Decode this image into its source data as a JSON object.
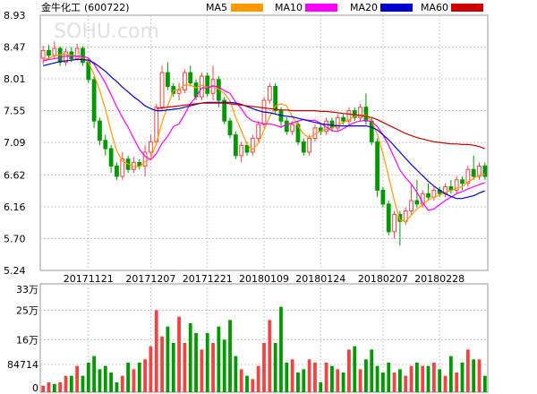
{
  "header": {
    "title": "金牛化工",
    "code": "(600722)",
    "legend": [
      {
        "label": "MA5",
        "color": "#ff9900"
      },
      {
        "label": "MA10",
        "color": "#ff00ff"
      },
      {
        "label": "MA20",
        "color": "#0000cc"
      },
      {
        "label": "MA60",
        "color": "#cc0000"
      }
    ]
  },
  "watermark": "SOHU.com",
  "colors": {
    "up": "#ee4444",
    "down": "#009900",
    "grid": "#c8c8c8"
  },
  "chart_data": [
    {
      "type": "candlestick",
      "title": "",
      "ylim": [
        5.24,
        8.93
      ],
      "yticks": [
        "8.93",
        "8.47",
        "8.01",
        "7.55",
        "7.09",
        "6.62",
        "6.16",
        "5.70",
        "5.24"
      ],
      "xlabels": [
        "20171121",
        "20171207",
        "20171221",
        "20180109",
        "20180124",
        "20180207",
        "20180228"
      ],
      "candles": [
        [
          8.31,
          8.42,
          8.22,
          8.49
        ],
        [
          8.42,
          8.35,
          8.3,
          8.5
        ],
        [
          8.35,
          8.45,
          8.3,
          8.55
        ],
        [
          8.45,
          8.25,
          8.2,
          8.48
        ],
        [
          8.25,
          8.4,
          8.2,
          8.45
        ],
        [
          8.4,
          8.3,
          8.25,
          8.47
        ],
        [
          8.3,
          8.45,
          8.28,
          8.52
        ],
        [
          8.45,
          8.25,
          8.2,
          8.48
        ],
        [
          8.25,
          8.0,
          7.95,
          8.3
        ],
        [
          8.0,
          7.4,
          7.3,
          8.05
        ],
        [
          7.4,
          7.12,
          7.05,
          7.45
        ],
        [
          7.12,
          7.0,
          6.9,
          7.2
        ],
        [
          7.0,
          6.75,
          6.65,
          7.05
        ],
        [
          6.75,
          6.6,
          6.55,
          6.8
        ],
        [
          6.6,
          6.85,
          6.55,
          6.95
        ],
        [
          6.85,
          6.7,
          6.65,
          6.9
        ],
        [
          6.7,
          6.8,
          6.65,
          6.88
        ],
        [
          6.8,
          6.75,
          6.7,
          6.85
        ],
        [
          6.75,
          6.95,
          6.6,
          7.05
        ],
        [
          6.95,
          7.1,
          6.9,
          7.2
        ],
        [
          7.1,
          7.6,
          7.05,
          7.65
        ],
        [
          7.6,
          8.1,
          7.55,
          8.2
        ],
        [
          8.1,
          7.9,
          7.85,
          8.25
        ],
        [
          7.9,
          7.8,
          7.75,
          7.95
        ],
        [
          7.8,
          7.85,
          7.7,
          7.95
        ],
        [
          7.85,
          8.1,
          7.8,
          8.15
        ],
        [
          8.1,
          7.95,
          7.9,
          8.2
        ],
        [
          7.95,
          7.75,
          7.7,
          8.0
        ],
        [
          7.75,
          8.05,
          7.7,
          8.1
        ],
        [
          8.05,
          7.8,
          7.75,
          8.1
        ],
        [
          7.8,
          8.0,
          7.7,
          8.2
        ],
        [
          8.0,
          7.7,
          7.6,
          8.05
        ],
        [
          7.7,
          7.4,
          7.35,
          7.75
        ],
        [
          7.4,
          7.2,
          7.15,
          7.45
        ],
        [
          7.2,
          6.9,
          6.85,
          7.25
        ],
        [
          6.9,
          7.05,
          6.8,
          7.1
        ],
        [
          7.05,
          6.95,
          6.9,
          7.1
        ],
        [
          6.95,
          7.15,
          6.9,
          7.2
        ],
        [
          7.15,
          7.35,
          7.1,
          7.4
        ],
        [
          7.35,
          7.7,
          7.3,
          7.75
        ],
        [
          7.7,
          7.9,
          7.65,
          7.95
        ],
        [
          7.9,
          7.55,
          7.5,
          7.95
        ],
        [
          7.55,
          7.4,
          7.3,
          7.6
        ],
        [
          7.4,
          7.25,
          7.2,
          7.45
        ],
        [
          7.25,
          7.35,
          7.2,
          7.4
        ],
        [
          7.35,
          7.1,
          7.05,
          7.4
        ],
        [
          7.1,
          6.95,
          6.9,
          7.15
        ],
        [
          6.95,
          7.15,
          6.9,
          7.2
        ],
        [
          7.15,
          7.3,
          7.1,
          7.35
        ],
        [
          7.3,
          7.25,
          7.2,
          7.35
        ],
        [
          7.25,
          7.4,
          7.2,
          7.45
        ],
        [
          7.4,
          7.3,
          7.25,
          7.45
        ],
        [
          7.3,
          7.45,
          7.25,
          7.5
        ],
        [
          7.45,
          7.4,
          7.35,
          7.5
        ],
        [
          7.4,
          7.55,
          7.35,
          7.6
        ],
        [
          7.55,
          7.45,
          7.4,
          7.6
        ],
        [
          7.45,
          7.6,
          7.4,
          7.65
        ],
        [
          7.6,
          7.4,
          7.35,
          7.8
        ],
        [
          7.4,
          7.1,
          7.05,
          7.45
        ],
        [
          7.1,
          6.4,
          6.3,
          7.15
        ],
        [
          6.4,
          6.2,
          6.15,
          6.45
        ],
        [
          6.2,
          5.8,
          5.75,
          6.25
        ],
        [
          5.8,
          6.05,
          5.7,
          6.1
        ],
        [
          6.05,
          5.95,
          5.6,
          6.1
        ],
        [
          5.95,
          6.1,
          5.9,
          6.15
        ],
        [
          6.1,
          6.25,
          6.05,
          6.5
        ],
        [
          6.25,
          6.2,
          6.15,
          6.55
        ],
        [
          6.2,
          6.35,
          6.15,
          6.4
        ],
        [
          6.35,
          6.3,
          6.25,
          6.5
        ],
        [
          6.3,
          6.4,
          6.25,
          6.45
        ],
        [
          6.4,
          6.35,
          6.3,
          6.45
        ],
        [
          6.35,
          6.45,
          6.3,
          6.5
        ],
        [
          6.45,
          6.4,
          6.35,
          6.55
        ],
        [
          6.4,
          6.55,
          6.35,
          6.6
        ],
        [
          6.55,
          6.5,
          6.4,
          6.6
        ],
        [
          6.5,
          6.7,
          6.45,
          6.75
        ],
        [
          6.7,
          6.6,
          6.55,
          6.9
        ],
        [
          6.6,
          6.75,
          6.55,
          6.8
        ],
        [
          6.75,
          6.6,
          6.55,
          6.8
        ]
      ],
      "series": [
        {
          "name": "MA5",
          "color": "#ff9900",
          "values": [
            8.28,
            8.31,
            8.34,
            8.36,
            8.37,
            8.35,
            8.33,
            8.31,
            8.25,
            8.07,
            7.84,
            7.57,
            7.25,
            6.97,
            6.82,
            6.78,
            6.74,
            6.74,
            6.81,
            6.86,
            7.08,
            7.38,
            7.62,
            7.84,
            7.86,
            7.92,
            7.92,
            7.88,
            7.92,
            7.89,
            7.9,
            7.86,
            7.8,
            7.69,
            7.45,
            7.26,
            7.06,
            6.99,
            7.08,
            7.27,
            7.46,
            7.62,
            7.65,
            7.62,
            7.47,
            7.33,
            7.21,
            7.16,
            7.21,
            7.26,
            7.28,
            7.3,
            7.34,
            7.38,
            7.42,
            7.47,
            7.49,
            7.48,
            7.4,
            7.21,
            6.93,
            6.6,
            6.25,
            5.97,
            5.95,
            6.04,
            6.13,
            6.19,
            6.26,
            6.3,
            6.33,
            6.37,
            6.4,
            6.43,
            6.45,
            6.52,
            6.57,
            6.62,
            6.63
          ]
        },
        {
          "name": "MA10",
          "color": "#ff00ff",
          "values": [
            8.27,
            8.29,
            8.3,
            8.32,
            8.34,
            8.34,
            8.34,
            8.34,
            8.31,
            8.22,
            8.09,
            7.95,
            7.78,
            7.61,
            7.45,
            7.31,
            7.15,
            6.99,
            6.89,
            6.84,
            6.93,
            7.08,
            7.18,
            7.32,
            7.36,
            7.5,
            7.65,
            7.75,
            7.88,
            7.88,
            7.91,
            7.89,
            7.84,
            7.8,
            7.67,
            7.58,
            7.46,
            7.4,
            7.38,
            7.36,
            7.36,
            7.34,
            7.31,
            7.35,
            7.37,
            7.4,
            7.42,
            7.41,
            7.41,
            7.37,
            7.31,
            7.26,
            7.25,
            7.29,
            7.34,
            7.38,
            7.4,
            7.41,
            7.39,
            7.32,
            7.2,
            7.05,
            6.87,
            6.69,
            6.58,
            6.49,
            6.37,
            6.22,
            6.11,
            6.13,
            6.19,
            6.25,
            6.3,
            6.35,
            6.38,
            6.42,
            6.45,
            6.48,
            6.51
          ]
        },
        {
          "name": "MA20",
          "color": "#0000cc",
          "values": [
            8.2,
            8.22,
            8.24,
            8.26,
            8.27,
            8.28,
            8.29,
            8.29,
            8.28,
            8.24,
            8.18,
            8.12,
            8.04,
            7.97,
            7.89,
            7.82,
            7.75,
            7.69,
            7.62,
            7.58,
            7.55,
            7.55,
            7.56,
            7.57,
            7.58,
            7.6,
            7.62,
            7.64,
            7.66,
            7.67,
            7.67,
            7.67,
            7.67,
            7.67,
            7.66,
            7.64,
            7.61,
            7.58,
            7.55,
            7.53,
            7.52,
            7.5,
            7.48,
            7.47,
            7.46,
            7.44,
            7.42,
            7.4,
            7.38,
            7.36,
            7.35,
            7.34,
            7.33,
            7.33,
            7.33,
            7.33,
            7.33,
            7.33,
            7.31,
            7.27,
            7.2,
            7.13,
            7.04,
            6.95,
            6.86,
            6.77,
            6.69,
            6.61,
            6.53,
            6.46,
            6.4,
            6.35,
            6.31,
            6.28,
            6.28,
            6.3,
            6.32,
            6.36,
            6.39
          ]
        },
        {
          "name": "MA60",
          "color": "#cc0000",
          "values": [
            null,
            null,
            null,
            null,
            null,
            null,
            null,
            null,
            null,
            null,
            null,
            null,
            null,
            null,
            null,
            null,
            null,
            null,
            null,
            null,
            7.58,
            7.59,
            7.6,
            7.61,
            7.62,
            7.63,
            7.64,
            7.65,
            7.66,
            7.66,
            7.66,
            7.66,
            7.66,
            7.65,
            7.64,
            7.63,
            7.62,
            7.61,
            7.6,
            7.59,
            7.58,
            7.57,
            7.56,
            7.56,
            7.55,
            7.55,
            7.55,
            7.55,
            7.55,
            7.54,
            7.54,
            7.53,
            7.52,
            7.51,
            7.5,
            7.49,
            7.48,
            7.47,
            7.45,
            7.42,
            7.38,
            7.34,
            7.3,
            7.26,
            7.22,
            7.19,
            7.16,
            7.14,
            7.12,
            7.1,
            7.09,
            7.08,
            7.07,
            7.07,
            7.06,
            7.06,
            7.05,
            7.03,
            7.0
          ]
        }
      ]
    },
    {
      "type": "bar",
      "title": "",
      "yticks": [
        "33万",
        "25万",
        "16万",
        "84714",
        "0"
      ],
      "ylim": [
        0,
        330000
      ],
      "values": [
        20000,
        30000,
        25000,
        30000,
        50000,
        50000,
        80000,
        50000,
        90000,
        110000,
        70000,
        80000,
        60000,
        30000,
        50000,
        90000,
        70000,
        90000,
        100000,
        140000,
        250000,
        170000,
        200000,
        150000,
        230000,
        150000,
        210000,
        180000,
        130000,
        180000,
        150000,
        200000,
        160000,
        220000,
        110000,
        70000,
        50000,
        40000,
        80000,
        150000,
        220000,
        150000,
        260000,
        90000,
        100000,
        60000,
        70000,
        100000,
        90000,
        30000,
        90000,
        80000,
        70000,
        60000,
        130000,
        140000,
        70000,
        100000,
        130000,
        80000,
        60000,
        90000,
        60000,
        70000,
        50000,
        80000,
        90000,
        80000,
        80000,
        90000,
        70000,
        50000,
        110000,
        60000,
        90000,
        130000,
        100000,
        100000,
        50000
      ],
      "colors": [
        "up",
        "up",
        "down",
        "up",
        "up",
        "down",
        "up",
        "down",
        "down",
        "down",
        "down",
        "down",
        "down",
        "down",
        "up",
        "down",
        "up",
        "down",
        "up",
        "up",
        "up",
        "up",
        "down",
        "down",
        "up",
        "up",
        "down",
        "down",
        "up",
        "down",
        "up",
        "down",
        "down",
        "down",
        "down",
        "up",
        "down",
        "up",
        "up",
        "up",
        "up",
        "down",
        "down",
        "down",
        "up",
        "down",
        "down",
        "up",
        "up",
        "down",
        "up",
        "down",
        "up",
        "down",
        "up",
        "down",
        "up",
        "down",
        "down",
        "down",
        "down",
        "down",
        "up",
        "down",
        "up",
        "up",
        "down",
        "up",
        "down",
        "up",
        "down",
        "up",
        "down",
        "up",
        "down",
        "up",
        "down",
        "up",
        "down"
      ]
    }
  ]
}
